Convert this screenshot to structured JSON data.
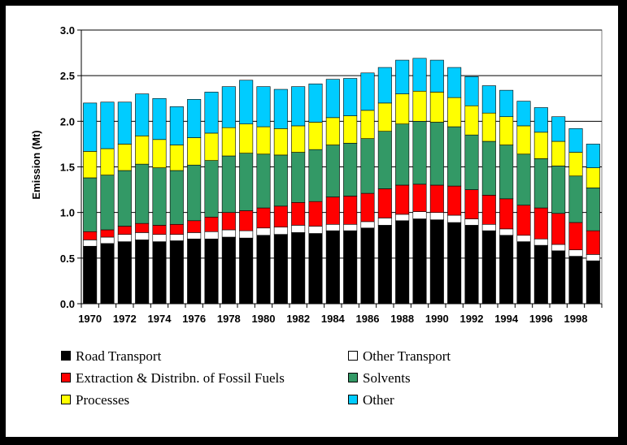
{
  "chart_data": {
    "type": "bar",
    "stacked": true,
    "title": "",
    "xlabel": "",
    "ylabel": "Emission (Mt)",
    "ylim": [
      0,
      3.0
    ],
    "yticks": [
      "0.0",
      "0.5",
      "1.0",
      "1.5",
      "2.0",
      "2.5",
      "3.0"
    ],
    "grid": true,
    "legend_position": "bottom",
    "categories": [
      "1970",
      "1971",
      "1972",
      "1973",
      "1974",
      "1975",
      "1976",
      "1977",
      "1978",
      "1979",
      "1980",
      "1981",
      "1982",
      "1983",
      "1984",
      "1985",
      "1986",
      "1987",
      "1988",
      "1989",
      "1990",
      "1991",
      "1992",
      "1993",
      "1994",
      "1995",
      "1996",
      "1997",
      "1998",
      "1999"
    ],
    "x_tick_labels": [
      "1970",
      "",
      "1972",
      "",
      "1974",
      "",
      "1976",
      "",
      "1978",
      "",
      "1980",
      "",
      "1982",
      "",
      "1984",
      "",
      "1986",
      "",
      "1988",
      "",
      "1990",
      "",
      "1992",
      "",
      "1994",
      "",
      "1996",
      "",
      "1998",
      ""
    ],
    "series": [
      {
        "name": "Road Transport",
        "color": "#000000",
        "values": [
          0.63,
          0.66,
          0.68,
          0.7,
          0.68,
          0.69,
          0.71,
          0.71,
          0.73,
          0.72,
          0.75,
          0.76,
          0.78,
          0.77,
          0.8,
          0.8,
          0.83,
          0.86,
          0.91,
          0.93,
          0.92,
          0.89,
          0.86,
          0.8,
          0.75,
          0.68,
          0.64,
          0.58,
          0.52,
          0.47
        ]
      },
      {
        "name": "Other Transport",
        "color": "#ffffff",
        "values": [
          0.07,
          0.07,
          0.08,
          0.08,
          0.08,
          0.07,
          0.07,
          0.08,
          0.08,
          0.08,
          0.08,
          0.08,
          0.08,
          0.08,
          0.07,
          0.07,
          0.07,
          0.08,
          0.07,
          0.08,
          0.08,
          0.08,
          0.07,
          0.07,
          0.07,
          0.07,
          0.07,
          0.07,
          0.07,
          0.07
        ]
      },
      {
        "name": "Extraction & Distribn. of Fossil Fuels",
        "color": "#ff0000",
        "values": [
          0.09,
          0.08,
          0.09,
          0.1,
          0.1,
          0.11,
          0.13,
          0.16,
          0.19,
          0.22,
          0.22,
          0.23,
          0.25,
          0.27,
          0.3,
          0.31,
          0.31,
          0.32,
          0.32,
          0.3,
          0.3,
          0.32,
          0.32,
          0.32,
          0.33,
          0.33,
          0.34,
          0.34,
          0.3,
          0.26
        ]
      },
      {
        "name": "Solvents",
        "color": "#339966",
        "values": [
          0.59,
          0.6,
          0.61,
          0.65,
          0.63,
          0.59,
          0.61,
          0.62,
          0.62,
          0.63,
          0.59,
          0.56,
          0.55,
          0.57,
          0.57,
          0.58,
          0.6,
          0.63,
          0.67,
          0.69,
          0.69,
          0.65,
          0.6,
          0.59,
          0.59,
          0.56,
          0.54,
          0.52,
          0.51,
          0.47
        ]
      },
      {
        "name": "Processes",
        "color": "#ffff00",
        "values": [
          0.29,
          0.29,
          0.29,
          0.31,
          0.31,
          0.28,
          0.3,
          0.3,
          0.31,
          0.32,
          0.3,
          0.29,
          0.29,
          0.3,
          0.3,
          0.3,
          0.31,
          0.31,
          0.33,
          0.33,
          0.33,
          0.32,
          0.32,
          0.31,
          0.31,
          0.31,
          0.29,
          0.27,
          0.26,
          0.22
        ]
      },
      {
        "name": "Other",
        "color": "#00ccff",
        "values": [
          0.53,
          0.51,
          0.46,
          0.46,
          0.45,
          0.42,
          0.42,
          0.45,
          0.45,
          0.48,
          0.44,
          0.43,
          0.43,
          0.42,
          0.42,
          0.41,
          0.41,
          0.39,
          0.37,
          0.36,
          0.35,
          0.33,
          0.32,
          0.3,
          0.29,
          0.27,
          0.27,
          0.27,
          0.26,
          0.26
        ]
      }
    ]
  },
  "legend": {
    "items": [
      {
        "label": "Road Transport",
        "color": "#000000"
      },
      {
        "label": "Other Transport",
        "color": "#ffffff"
      },
      {
        "label": "Extraction & Distribn. of Fossil Fuels",
        "color": "#ff0000"
      },
      {
        "label": "Solvents",
        "color": "#339966"
      },
      {
        "label": "Processes",
        "color": "#ffff00"
      },
      {
        "label": "Other",
        "color": "#00ccff"
      }
    ]
  }
}
